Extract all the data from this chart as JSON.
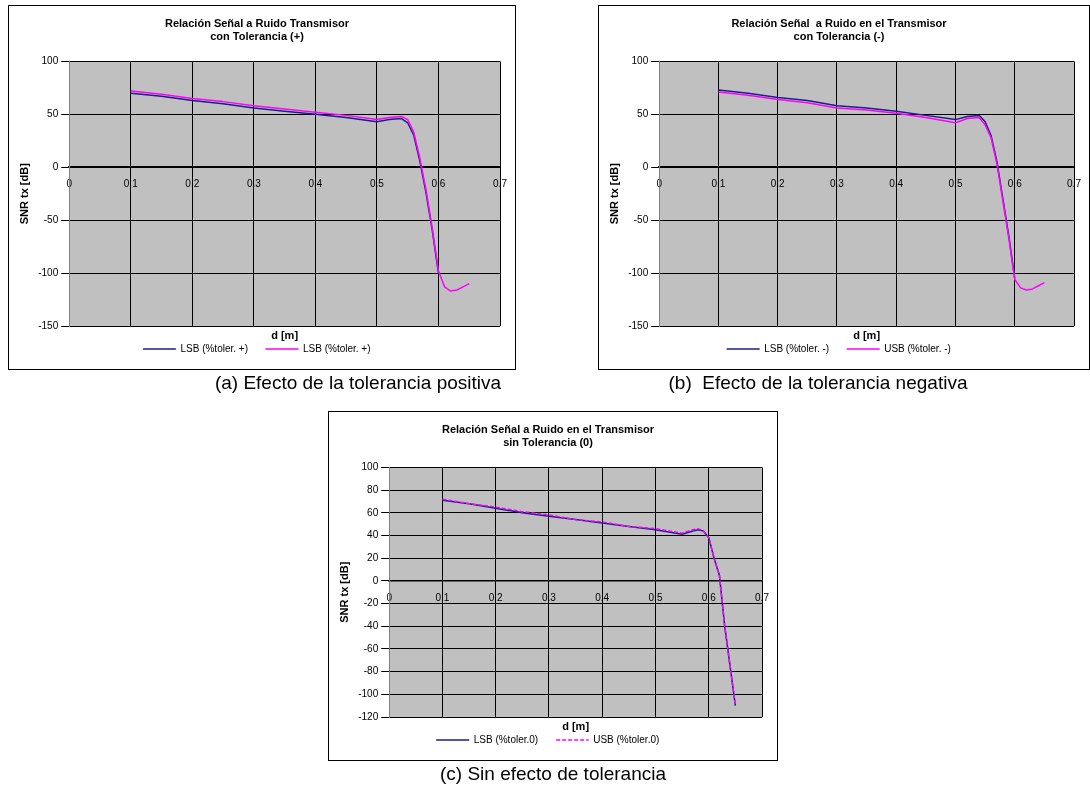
{
  "chart_data": [
    {
      "type": "line",
      "title": "Relación Señal a Ruido Transmisor\ncon Tolerancia (+)",
      "xlabel": "d [m]",
      "ylabel": "SNR tx [dB]",
      "annotations": [
        "(a) Efecto de la tolerancia positiva"
      ],
      "x": [
        0.1,
        0.15,
        0.2,
        0.25,
        0.3,
        0.35,
        0.4,
        0.45,
        0.5,
        0.52,
        0.54,
        0.55,
        0.56,
        0.57,
        0.58,
        0.59,
        0.6,
        0.61,
        0.62,
        0.63,
        0.64,
        0.65
      ],
      "xlim": [
        0,
        0.7
      ],
      "xticks": [
        0,
        0.1,
        0.2,
        0.3,
        0.4,
        0.5,
        0.6,
        0.7
      ],
      "ylim": [
        -150,
        100
      ],
      "yticks": [
        -150,
        -100,
        -50,
        0,
        50,
        100
      ],
      "grid": true,
      "legend": "bottom",
      "marker": "none",
      "series": [
        {
          "name": "LSB (%toler. +)",
          "color": "#1c1c8c",
          "line_style": "solid",
          "values": [
            70,
            67,
            63,
            60,
            56,
            53,
            50,
            47,
            43,
            45,
            46,
            42,
            30,
            5,
            -25,
            -60,
            -100,
            null,
            null,
            null,
            null,
            null
          ]
        },
        {
          "name": "LSB (%toler. +)",
          "color": "#ff00ff",
          "line_style": "solid",
          "values": [
            72,
            69,
            65,
            62,
            58,
            55,
            52,
            49,
            45,
            47,
            48,
            45,
            33,
            8,
            -22,
            -58,
            -98,
            -113,
            -117,
            -116,
            -113,
            -110
          ]
        }
      ]
    },
    {
      "type": "line",
      "title": "Relación Señal  a Ruido en el Transmisor\ncon Tolerancia (-)",
      "xlabel": "d [m]",
      "ylabel": "SNR tx [dB]",
      "annotations": [
        "(b)  Efecto de la tolerancia negativa"
      ],
      "x": [
        0.1,
        0.15,
        0.2,
        0.25,
        0.3,
        0.35,
        0.4,
        0.45,
        0.5,
        0.52,
        0.54,
        0.55,
        0.56,
        0.57,
        0.58,
        0.59,
        0.6,
        0.61,
        0.62,
        0.63,
        0.64,
        0.65
      ],
      "xlim": [
        0,
        0.7
      ],
      "xticks": [
        0,
        0.1,
        0.2,
        0.3,
        0.4,
        0.5,
        0.6,
        0.7
      ],
      "ylim": [
        -150,
        100
      ],
      "yticks": [
        -150,
        -100,
        -50,
        0,
        50,
        100
      ],
      "grid": true,
      "legend": "bottom",
      "marker": "none",
      "series": [
        {
          "name": "LSB (%toler. -)",
          "color": "#1c1c8c",
          "line_style": "solid",
          "values": [
            73,
            70,
            66,
            63,
            58,
            56,
            53,
            49,
            45,
            48,
            49,
            43,
            30,
            5,
            -30,
            -65,
            -105,
            null,
            null,
            null,
            null,
            null
          ]
        },
        {
          "name": "USB (%toler. -)",
          "color": "#ff00ff",
          "line_style": "solid",
          "values": [
            71,
            68,
            64,
            61,
            56,
            54,
            51,
            47,
            42,
            46,
            47,
            40,
            28,
            3,
            -32,
            -67,
            -106,
            -114,
            -116,
            -115,
            -112,
            -109
          ]
        }
      ]
    },
    {
      "type": "line",
      "title": "Relación Señal a Ruido en el Transmisor\nsin Tolerancia (0)",
      "xlabel": "d [m]",
      "ylabel": "SNR tx [dB]",
      "annotations": [
        "(c) Sin efecto de tolerancia"
      ],
      "x": [
        0.1,
        0.15,
        0.2,
        0.25,
        0.3,
        0.35,
        0.4,
        0.45,
        0.5,
        0.55,
        0.57,
        0.58,
        0.59,
        0.6,
        0.61,
        0.62,
        0.63,
        0.64,
        0.65
      ],
      "xlim": [
        0,
        0.7
      ],
      "xticks": [
        0,
        0.1,
        0.2,
        0.3,
        0.4,
        0.5,
        0.6,
        0.7
      ],
      "ylim": [
        -120,
        100
      ],
      "yticks": [
        -120,
        -100,
        -80,
        -60,
        -40,
        -20,
        0,
        20,
        40,
        60,
        80,
        100
      ],
      "grid": true,
      "legend": "bottom",
      "marker": "none",
      "series": [
        {
          "name": "LSB (%toler.0)",
          "color": "#1c1c8c",
          "line_style": "solid",
          "values": [
            71,
            68,
            64,
            60,
            57,
            54,
            51,
            48,
            45,
            41,
            44,
            45,
            44,
            38,
            20,
            5,
            -40,
            -75,
            -110
          ]
        },
        {
          "name": "USB (%toler.0)",
          "color": "#ff00ff",
          "line_style": "dashed",
          "values": [
            72,
            68,
            65,
            61,
            58,
            54,
            52,
            48,
            46,
            42,
            45,
            46,
            44,
            38,
            20,
            5,
            -40,
            -75,
            -110
          ]
        }
      ]
    }
  ]
}
